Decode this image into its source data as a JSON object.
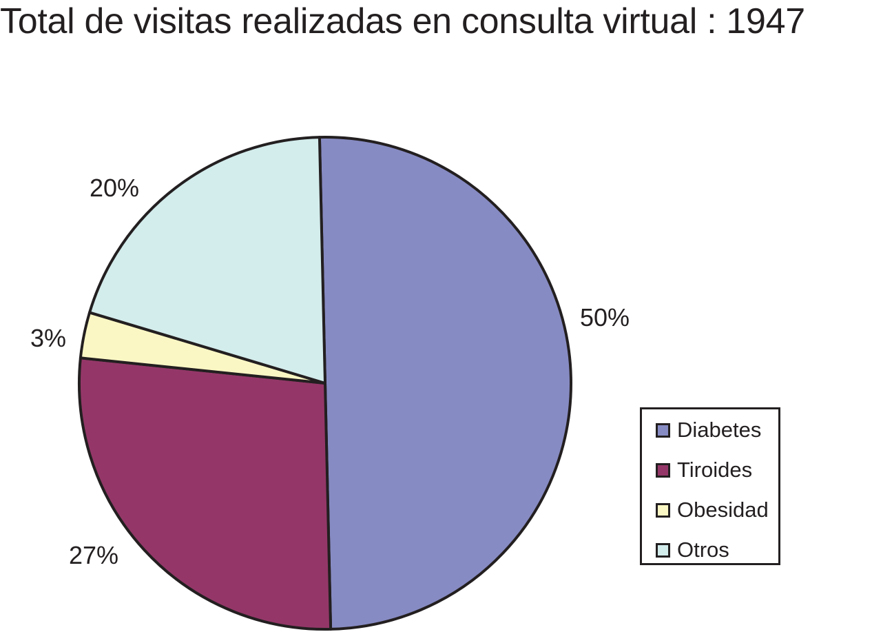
{
  "chart_data": {
    "type": "pie",
    "title": "Total de visitas realizadas en consulta virtual : 1947",
    "categories": [
      "Diabetes",
      "Tiroides",
      "Obesidad",
      "Otros"
    ],
    "values": [
      50,
      27,
      3,
      20
    ],
    "labels": [
      "50%",
      "27%",
      "3%",
      "20%"
    ],
    "colors": [
      "#878bc3",
      "#943768",
      "#fbf7c4",
      "#d3ecec"
    ],
    "legend": "bottom-right"
  }
}
